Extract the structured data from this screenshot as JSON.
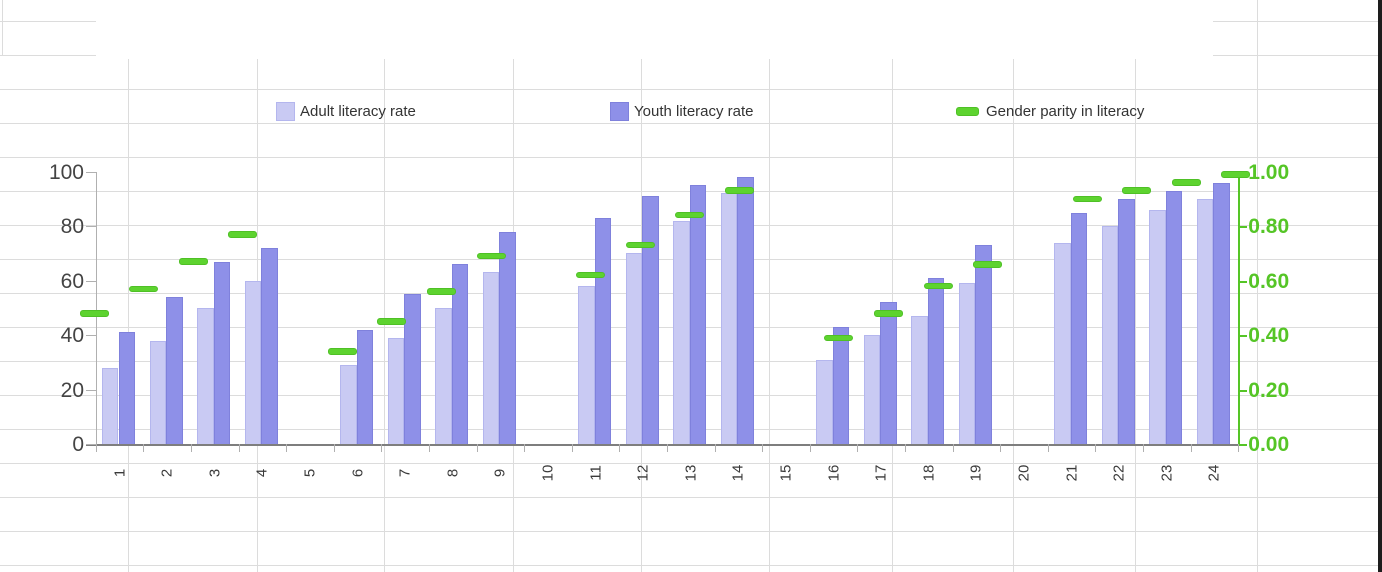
{
  "chart_data": {
    "type": "bar",
    "title": "",
    "categories": [
      "1",
      "2",
      "3",
      "4",
      "5",
      "6",
      "7",
      "8",
      "9",
      "10",
      "11",
      "12",
      "13",
      "14",
      "15",
      "16",
      "17",
      "18",
      "19",
      "20",
      "21",
      "22",
      "23",
      "24"
    ],
    "series": [
      {
        "name": "Adult literacy rate",
        "type": "bar",
        "axis": "left",
        "color": "#c9caf3",
        "values": [
          28,
          38,
          50,
          60,
          null,
          29,
          39,
          50,
          63,
          null,
          58,
          70,
          82,
          92,
          null,
          31,
          40,
          47,
          59,
          null,
          74,
          80,
          86,
          90
        ]
      },
      {
        "name": "Youth literacy rate",
        "type": "bar",
        "axis": "left",
        "color": "#8e90e8",
        "values": [
          41,
          54,
          67,
          72,
          null,
          42,
          55,
          66,
          78,
          null,
          83,
          91,
          95,
          98,
          null,
          43,
          52,
          61,
          73,
          null,
          85,
          90,
          93,
          96
        ]
      },
      {
        "name": "Gender parity in literacy",
        "type": "dash",
        "axis": "right",
        "color": "#5dd32f",
        "values": [
          0.48,
          0.57,
          0.67,
          0.77,
          null,
          0.34,
          0.45,
          0.56,
          0.69,
          null,
          0.62,
          0.73,
          0.84,
          0.93,
          null,
          0.39,
          0.48,
          0.58,
          0.66,
          null,
          0.9,
          0.93,
          0.96,
          0.99
        ]
      }
    ],
    "left_axis": {
      "min": 0,
      "max": 100,
      "tick_labels": [
        "0",
        "20",
        "40",
        "60",
        "80",
        "100"
      ]
    },
    "right_axis": {
      "min": 0,
      "max": 1,
      "tick_labels": [
        "0.00",
        "0.20",
        "0.40",
        "0.60",
        "0.80",
        "1.00"
      ],
      "color": "#55c526"
    },
    "legend_position": "top",
    "grid": "spreadsheet-background"
  },
  "colors": {
    "adult_bar": "#c9caf3",
    "adult_bar_border": "#b4b6ee",
    "youth_bar": "#8e90e8",
    "youth_bar_border": "#7f81dc",
    "parity_green": "#5dd32f",
    "parity_green_border": "#4fc026",
    "green_axis_text": "#55c526",
    "spreadsheet_grid": "#dcdcdc"
  }
}
